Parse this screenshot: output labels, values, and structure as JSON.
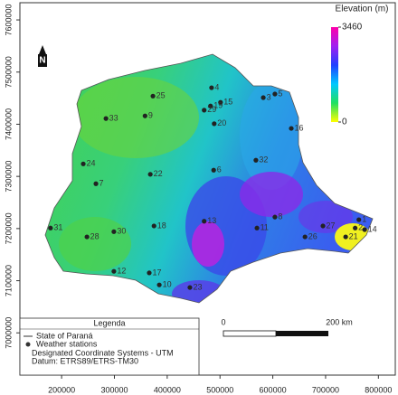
{
  "map": {
    "xlim": [
      121000,
      832000
    ],
    "ylim": [
      6919000,
      7633000
    ],
    "xticks": [
      200000,
      300000,
      400000,
      500000,
      600000,
      700000,
      800000
    ],
    "yticks": [
      7000000,
      7100000,
      7200000,
      7300000,
      7400000,
      7500000,
      7600000
    ],
    "stations": [
      {
        "label": "1",
        "x": 763000,
        "y": 7217000
      },
      {
        "label": "2",
        "x": 756000,
        "y": 7201000
      },
      {
        "label": "3",
        "x": 582000,
        "y": 7451000
      },
      {
        "label": "4",
        "x": 484000,
        "y": 7470000
      },
      {
        "label": "5",
        "x": 604000,
        "y": 7458000
      },
      {
        "label": "6",
        "x": 488000,
        "y": 7312000
      },
      {
        "label": "7",
        "x": 265000,
        "y": 7286000
      },
      {
        "label": "8",
        "x": 604000,
        "y": 7222000
      },
      {
        "label": "9",
        "x": 358000,
        "y": 7416000
      },
      {
        "label": "10",
        "x": 385000,
        "y": 7092000
      },
      {
        "label": "11",
        "x": 570000,
        "y": 7201000
      },
      {
        "label": "12",
        "x": 299000,
        "y": 7118000
      },
      {
        "label": "13",
        "x": 470000,
        "y": 7214000
      },
      {
        "label": "14",
        "x": 774000,
        "y": 7198000
      },
      {
        "label": "15",
        "x": 501000,
        "y": 7442000
      },
      {
        "label": "16",
        "x": 635000,
        "y": 7392000
      },
      {
        "label": "17",
        "x": 366000,
        "y": 7115000
      },
      {
        "label": "18",
        "x": 375000,
        "y": 7205000
      },
      {
        "label": "19",
        "x": 482000,
        "y": 7435000
      },
      {
        "label": "20",
        "x": 489000,
        "y": 7401000
      },
      {
        "label": "21",
        "x": 738000,
        "y": 7184000
      },
      {
        "label": "22",
        "x": 368000,
        "y": 7304000
      },
      {
        "label": "23",
        "x": 443000,
        "y": 7087000
      },
      {
        "label": "24",
        "x": 241000,
        "y": 7324000
      },
      {
        "label": "25",
        "x": 373000,
        "y": 7454000
      },
      {
        "label": "26",
        "x": 661000,
        "y": 7184000
      },
      {
        "label": "27",
        "x": 695000,
        "y": 7205000
      },
      {
        "label": "28",
        "x": 248000,
        "y": 7184000
      },
      {
        "label": "29",
        "x": 470000,
        "y": 7427000
      },
      {
        "label": "30",
        "x": 299000,
        "y": 7194000
      },
      {
        "label": "31",
        "x": 179000,
        "y": 7201000
      },
      {
        "label": "32",
        "x": 568000,
        "y": 7331000
      },
      {
        "label": "33",
        "x": 284000,
        "y": 7411000
      }
    ],
    "elevation": {
      "title": "Elevation (m)",
      "ticks": [
        0,
        3460
      ]
    },
    "north": "N",
    "legend": {
      "title": "Legenda",
      "items": [
        "State of Paraná",
        "Weather stations",
        "Designated Coordinate Systems - UTM",
        "Datum: ETRS89/ETRS-TM30"
      ]
    },
    "scale": {
      "labels": [
        "0",
        "200 km"
      ]
    }
  }
}
